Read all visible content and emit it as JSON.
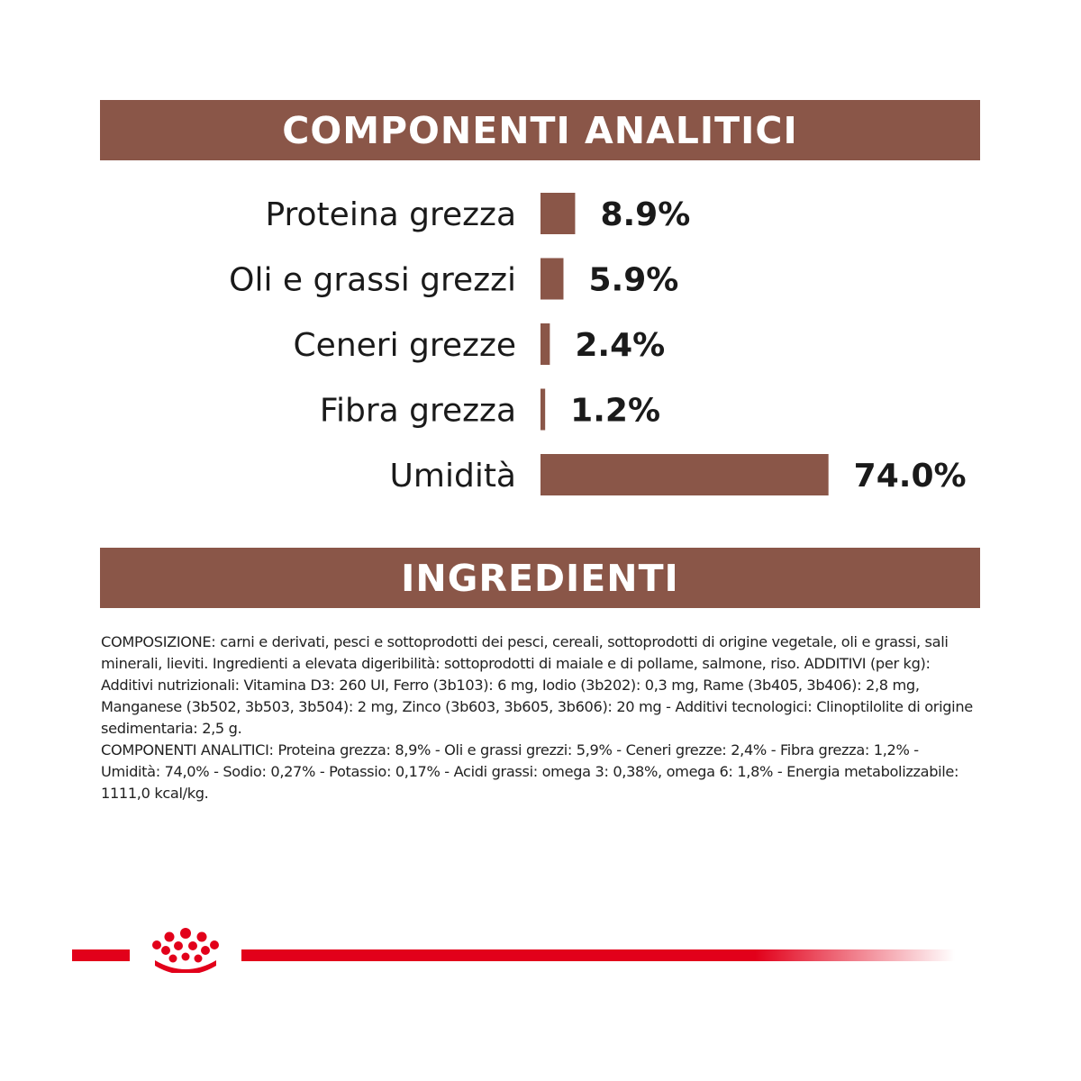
{
  "colors": {
    "header_bg": "#8a5648",
    "bar": "#8a5648",
    "brand_red": "#e2001a"
  },
  "sections": {
    "analytic_title": "COMPONENTI ANALITICI",
    "ingredients_title": "INGREDIENTI"
  },
  "chart_data": {
    "type": "bar",
    "orientation": "horizontal",
    "title": "COMPONENTI ANALITICI",
    "categories": [
      "Proteina grezza",
      "Oli e grassi grezzi",
      "Ceneri grezze",
      "Fibra grezza",
      "Umidità"
    ],
    "values": [
      8.9,
      5.9,
      2.4,
      1.2,
      74.0
    ],
    "value_labels": [
      "8.9%",
      "5.9%",
      "2.4%",
      "1.2%",
      "74.0%"
    ],
    "unit": "%",
    "grid": false,
    "legend": "none"
  },
  "ingredients": {
    "paragraphs": [
      "COMPOSIZIONE: carni e derivati, pesci e sottoprodotti dei pesci, cereali, sottoprodotti di origine vegetale, oli e grassi, sali minerali, lieviti. Ingredienti a elevata digeribilità: sottoprodotti di maiale e di pollame, salmone, riso. ADDITIVI (per kg): Additivi nutrizionali: Vitamina D3: 260 UI, Ferro (3b103): 6 mg, Iodio (3b202): 0,3 mg, Rame (3b405, 3b406): 2,8 mg, Manganese (3b502, 3b503, 3b504): 2 mg, Zinco (3b603, 3b605, 3b606): 20 mg - Additivi tecnologici: Clinoptilolite di origine sedimentaria: 2,5 g.",
      "COMPONENTI ANALITICI: Proteina grezza: 8,9% - Oli e grassi grezzi: 5,9% - Ceneri grezze: 2,4% - Fibra grezza: 1,2% - Umidità: 74,0% - Sodio: 0,27% - Potassio: 0,17% - Acidi grassi: omega 3: 0,38%, omega 6: 1,8% - Energia metabolizzabile: 1111,0 kcal/kg."
    ]
  },
  "footer": {
    "logo_icon": "royal-canin-crown-icon"
  }
}
